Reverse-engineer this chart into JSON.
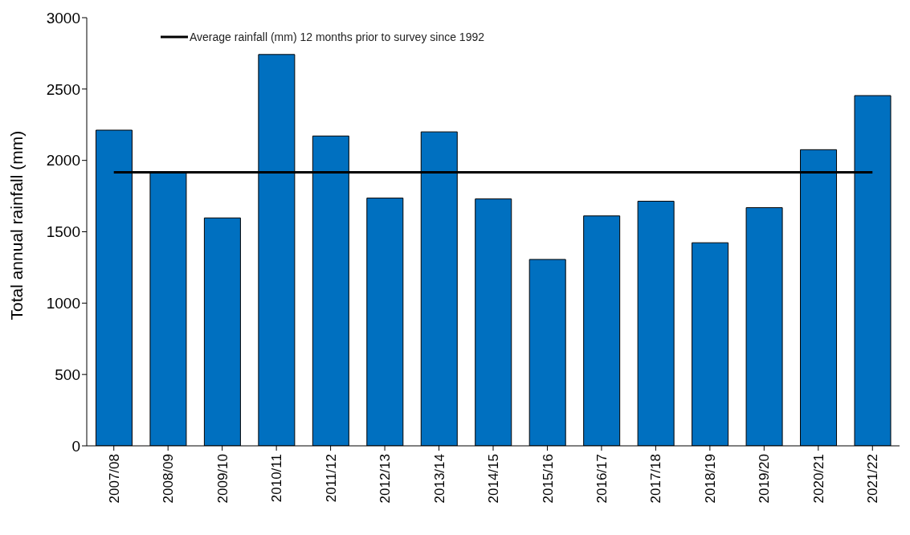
{
  "chart_data": {
    "type": "bar",
    "ylabel": "Total annual rainfall (mm)",
    "categories": [
      "2007/08",
      "2008/09",
      "2009/10",
      "2010/11",
      "2011/12",
      "2012/13",
      "2013/14",
      "2014/15",
      "2015/16",
      "2016/17",
      "2017/18",
      "2018/19",
      "2019/20",
      "2020/21",
      "2021/22"
    ],
    "values": [
      2212,
      1917,
      1597,
      2742,
      2171,
      1736,
      2200,
      1730,
      1306,
      1611,
      1714,
      1423,
      1669,
      2075,
      2454
    ],
    "color": "#0070c0",
    "ylim": [
      0,
      3000
    ],
    "yticks": [
      0,
      500,
      1000,
      1500,
      2000,
      2500,
      3000
    ],
    "grid": false,
    "ref_lines": [
      {
        "axis": "y",
        "value": 1917,
        "label": "Average rainfall (mm) 12 months prior to survey since 1992",
        "color": "#000000",
        "line_style": "solid"
      }
    ],
    "legend": "top left"
  }
}
